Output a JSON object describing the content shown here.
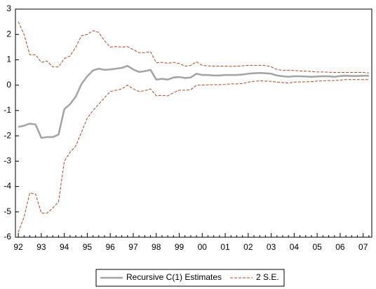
{
  "chart_data": {
    "type": "line",
    "categories": [
      "92",
      null,
      null,
      null,
      "93",
      null,
      null,
      null,
      "94",
      null,
      null,
      null,
      "95",
      null,
      null,
      null,
      "96",
      null,
      null,
      null,
      "97",
      null,
      null,
      null,
      "98",
      null,
      null,
      null,
      "99",
      null,
      null,
      null,
      "00",
      null,
      null,
      null,
      "01",
      null,
      null,
      null,
      "02",
      null,
      null,
      null,
      "03",
      null,
      null,
      null,
      "04",
      null,
      null,
      null,
      "05",
      null,
      null,
      null,
      "06",
      null,
      null,
      null,
      "07",
      null
    ],
    "series": [
      {
        "name": "Recursive C(1) Estimates",
        "color": "#a3a3a3",
        "style": "solid",
        "values": [
          -1.65,
          -1.6,
          -1.52,
          -1.55,
          -2.08,
          -2.05,
          -2.05,
          -1.95,
          -0.95,
          -0.75,
          -0.45,
          0.05,
          0.35,
          0.58,
          0.65,
          0.6,
          0.62,
          0.65,
          0.68,
          0.76,
          0.62,
          0.52,
          0.55,
          0.6,
          0.22,
          0.25,
          0.22,
          0.3,
          0.32,
          0.28,
          0.3,
          0.45,
          0.4,
          0.4,
          0.38,
          0.38,
          0.4,
          0.4,
          0.4,
          0.42,
          0.45,
          0.47,
          0.48,
          0.47,
          0.45,
          0.38,
          0.35,
          0.33,
          0.35,
          0.35,
          0.34,
          0.33,
          0.34,
          0.35,
          0.35,
          0.33,
          0.36,
          0.37,
          0.36,
          0.36,
          0.37,
          0.37
        ]
      },
      {
        "name": "2 S.E.",
        "color": "#b5451b",
        "style": "dashed",
        "upper": [
          2.5,
          2.0,
          1.2,
          1.2,
          0.9,
          0.95,
          0.72,
          0.72,
          1.05,
          1.15,
          1.5,
          1.95,
          2.0,
          2.15,
          2.08,
          1.75,
          1.5,
          1.52,
          1.5,
          1.52,
          1.4,
          1.28,
          1.28,
          1.32,
          0.88,
          0.9,
          0.86,
          0.9,
          0.85,
          0.75,
          0.78,
          0.92,
          0.78,
          0.76,
          0.75,
          0.75,
          0.75,
          0.74,
          0.75,
          0.76,
          0.78,
          0.78,
          0.78,
          0.78,
          0.72,
          0.62,
          0.58,
          0.58,
          0.58,
          0.56,
          0.55,
          0.54,
          0.52,
          0.52,
          0.51,
          0.5,
          0.5,
          0.5,
          0.5,
          0.5,
          0.5,
          0.48
        ],
        "lower": [
          -5.8,
          -5.2,
          -4.25,
          -4.3,
          -5.05,
          -5.05,
          -4.85,
          -4.6,
          -3.0,
          -2.65,
          -2.4,
          -1.85,
          -1.3,
          -1.0,
          -0.75,
          -0.5,
          -0.25,
          -0.2,
          -0.15,
          0.0,
          -0.15,
          -0.25,
          -0.22,
          -0.15,
          -0.42,
          -0.4,
          -0.42,
          -0.3,
          -0.2,
          -0.2,
          -0.18,
          0.0,
          0.0,
          0.01,
          0.02,
          0.02,
          0.03,
          0.05,
          0.05,
          0.06,
          0.12,
          0.15,
          0.17,
          0.16,
          0.15,
          0.12,
          0.1,
          0.08,
          0.12,
          0.13,
          0.13,
          0.14,
          0.16,
          0.17,
          0.18,
          0.18,
          0.2,
          0.22,
          0.22,
          0.22,
          0.22,
          0.22
        ]
      }
    ],
    "ylim": [
      -6,
      3
    ],
    "yticks": [
      -6,
      -5,
      -4,
      -3,
      -2,
      -1,
      0,
      1,
      2,
      3
    ],
    "grid": false,
    "legend": "bottom"
  }
}
